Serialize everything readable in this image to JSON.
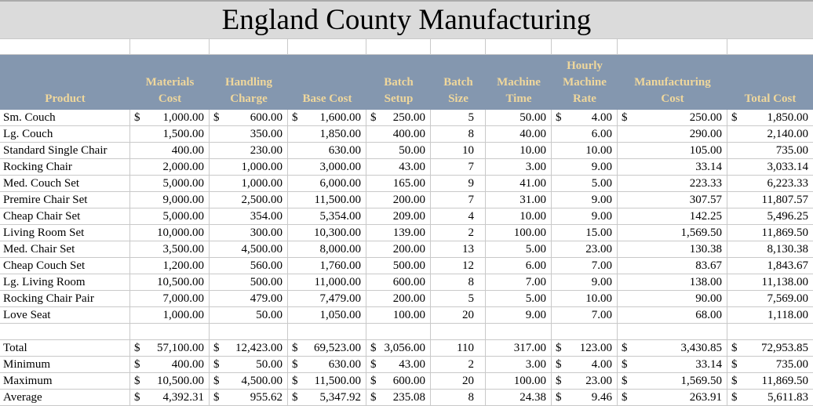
{
  "title": "England County Manufacturing",
  "colors": {
    "header_bg": "#8497AF",
    "header_text": "#EFD79C",
    "title_bg": "#DBDBDB",
    "grid": "#C9C9C9"
  },
  "columns": [
    {
      "label": "Product"
    },
    {
      "label": "Materials\nCost"
    },
    {
      "label": "Handling\nCharge"
    },
    {
      "label": "Base Cost"
    },
    {
      "label": "Batch\nSetup"
    },
    {
      "label": "Batch\nSize"
    },
    {
      "label": "Machine\nTime"
    },
    {
      "label": "Hourly\nMachine\nRate"
    },
    {
      "label": "Manufacturing\nCost"
    },
    {
      "label": "Total Cost"
    }
  ],
  "rows": [
    {
      "label": "Sm. Couch",
      "cells": [
        [
          "$",
          "1,000.00"
        ],
        [
          "$",
          "600.00"
        ],
        [
          "$",
          "1,600.00"
        ],
        [
          "$",
          "250.00"
        ],
        [
          "",
          "5"
        ],
        [
          "",
          "50.00"
        ],
        [
          "$",
          "4.00"
        ],
        [
          "$",
          "250.00"
        ],
        [
          "$",
          "1,850.00"
        ]
      ]
    },
    {
      "label": "Lg. Couch",
      "cells": [
        [
          "",
          "1,500.00"
        ],
        [
          "",
          "350.00"
        ],
        [
          "",
          "1,850.00"
        ],
        [
          "",
          "400.00"
        ],
        [
          "",
          "8"
        ],
        [
          "",
          "40.00"
        ],
        [
          "",
          "6.00"
        ],
        [
          "",
          "290.00"
        ],
        [
          "",
          "2,140.00"
        ]
      ]
    },
    {
      "label": "Standard Single Chair",
      "cells": [
        [
          "",
          "400.00"
        ],
        [
          "",
          "230.00"
        ],
        [
          "",
          "630.00"
        ],
        [
          "",
          "50.00"
        ],
        [
          "",
          "10"
        ],
        [
          "",
          "10.00"
        ],
        [
          "",
          "10.00"
        ],
        [
          "",
          "105.00"
        ],
        [
          "",
          "735.00"
        ]
      ]
    },
    {
      "label": "Rocking Chair",
      "cells": [
        [
          "",
          "2,000.00"
        ],
        [
          "",
          "1,000.00"
        ],
        [
          "",
          "3,000.00"
        ],
        [
          "",
          "43.00"
        ],
        [
          "",
          "7"
        ],
        [
          "",
          "3.00"
        ],
        [
          "",
          "9.00"
        ],
        [
          "",
          "33.14"
        ],
        [
          "",
          "3,033.14"
        ]
      ]
    },
    {
      "label": "Med. Couch Set",
      "cells": [
        [
          "",
          "5,000.00"
        ],
        [
          "",
          "1,000.00"
        ],
        [
          "",
          "6,000.00"
        ],
        [
          "",
          "165.00"
        ],
        [
          "",
          "9"
        ],
        [
          "",
          "41.00"
        ],
        [
          "",
          "5.00"
        ],
        [
          "",
          "223.33"
        ],
        [
          "",
          "6,223.33"
        ]
      ]
    },
    {
      "label": "Premire Chair Set",
      "cells": [
        [
          "",
          "9,000.00"
        ],
        [
          "",
          "2,500.00"
        ],
        [
          "",
          "11,500.00"
        ],
        [
          "",
          "200.00"
        ],
        [
          "",
          "7"
        ],
        [
          "",
          "31.00"
        ],
        [
          "",
          "9.00"
        ],
        [
          "",
          "307.57"
        ],
        [
          "",
          "11,807.57"
        ]
      ]
    },
    {
      "label": "Cheap Chair Set",
      "cells": [
        [
          "",
          "5,000.00"
        ],
        [
          "",
          "354.00"
        ],
        [
          "",
          "5,354.00"
        ],
        [
          "",
          "209.00"
        ],
        [
          "",
          "4"
        ],
        [
          "",
          "10.00"
        ],
        [
          "",
          "9.00"
        ],
        [
          "",
          "142.25"
        ],
        [
          "",
          "5,496.25"
        ]
      ]
    },
    {
      "label": "Living Room Set",
      "cells": [
        [
          "",
          "10,000.00"
        ],
        [
          "",
          "300.00"
        ],
        [
          "",
          "10,300.00"
        ],
        [
          "",
          "139.00"
        ],
        [
          "",
          "2"
        ],
        [
          "",
          "100.00"
        ],
        [
          "",
          "15.00"
        ],
        [
          "",
          "1,569.50"
        ],
        [
          "",
          "11,869.50"
        ]
      ]
    },
    {
      "label": "Med. Chair Set",
      "cells": [
        [
          "",
          "3,500.00"
        ],
        [
          "",
          "4,500.00"
        ],
        [
          "",
          "8,000.00"
        ],
        [
          "",
          "200.00"
        ],
        [
          "",
          "13"
        ],
        [
          "",
          "5.00"
        ],
        [
          "",
          "23.00"
        ],
        [
          "",
          "130.38"
        ],
        [
          "",
          "8,130.38"
        ]
      ]
    },
    {
      "label": "Cheap Couch Set",
      "cells": [
        [
          "",
          "1,200.00"
        ],
        [
          "",
          "560.00"
        ],
        [
          "",
          "1,760.00"
        ],
        [
          "",
          "500.00"
        ],
        [
          "",
          "12"
        ],
        [
          "",
          "6.00"
        ],
        [
          "",
          "7.00"
        ],
        [
          "",
          "83.67"
        ],
        [
          "",
          "1,843.67"
        ]
      ]
    },
    {
      "label": "Lg. Living Room",
      "cells": [
        [
          "",
          "10,500.00"
        ],
        [
          "",
          "500.00"
        ],
        [
          "",
          "11,000.00"
        ],
        [
          "",
          "600.00"
        ],
        [
          "",
          "8"
        ],
        [
          "",
          "7.00"
        ],
        [
          "",
          "9.00"
        ],
        [
          "",
          "138.00"
        ],
        [
          "",
          "11,138.00"
        ]
      ]
    },
    {
      "label": "Rocking Chair Pair",
      "cells": [
        [
          "",
          "7,000.00"
        ],
        [
          "",
          "479.00"
        ],
        [
          "",
          "7,479.00"
        ],
        [
          "",
          "200.00"
        ],
        [
          "",
          "5"
        ],
        [
          "",
          "5.00"
        ],
        [
          "",
          "10.00"
        ],
        [
          "",
          "90.00"
        ],
        [
          "",
          "7,569.00"
        ]
      ]
    },
    {
      "label": "Love Seat",
      "cells": [
        [
          "",
          "1,000.00"
        ],
        [
          "",
          "50.00"
        ],
        [
          "",
          "1,050.00"
        ],
        [
          "",
          "100.00"
        ],
        [
          "",
          "20"
        ],
        [
          "",
          "9.00"
        ],
        [
          "",
          "7.00"
        ],
        [
          "",
          "68.00"
        ],
        [
          "",
          "1,118.00"
        ]
      ]
    }
  ],
  "summary_rows": [
    {
      "label": "Total",
      "cells": [
        [
          "$",
          "57,100.00"
        ],
        [
          "$",
          "12,423.00"
        ],
        [
          "$",
          "69,523.00"
        ],
        [
          "$",
          "3,056.00"
        ],
        [
          "",
          "110"
        ],
        [
          "",
          "317.00"
        ],
        [
          "$",
          "123.00"
        ],
        [
          "$",
          "3,430.85"
        ],
        [
          "$",
          "72,953.85"
        ]
      ]
    },
    {
      "label": "Minimum",
      "cells": [
        [
          "$",
          "400.00"
        ],
        [
          "$",
          "50.00"
        ],
        [
          "$",
          "630.00"
        ],
        [
          "$",
          "43.00"
        ],
        [
          "",
          "2"
        ],
        [
          "",
          "3.00"
        ],
        [
          "$",
          "4.00"
        ],
        [
          "$",
          "33.14"
        ],
        [
          "$",
          "735.00"
        ]
      ]
    },
    {
      "label": "Maximum",
      "cells": [
        [
          "$",
          "10,500.00"
        ],
        [
          "$",
          "4,500.00"
        ],
        [
          "$",
          "11,500.00"
        ],
        [
          "$",
          "600.00"
        ],
        [
          "",
          "20"
        ],
        [
          "",
          "100.00"
        ],
        [
          "$",
          "23.00"
        ],
        [
          "$",
          "1,569.50"
        ],
        [
          "$",
          "11,869.50"
        ]
      ]
    },
    {
      "label": "Average",
      "cells": [
        [
          "$",
          "4,392.31"
        ],
        [
          "$",
          "955.62"
        ],
        [
          "$",
          "5,347.92"
        ],
        [
          "$",
          "235.08"
        ],
        [
          "",
          "8"
        ],
        [
          "",
          "24.38"
        ],
        [
          "$",
          "9.46"
        ],
        [
          "$",
          "263.91"
        ],
        [
          "$",
          "5,611.83"
        ]
      ]
    }
  ]
}
